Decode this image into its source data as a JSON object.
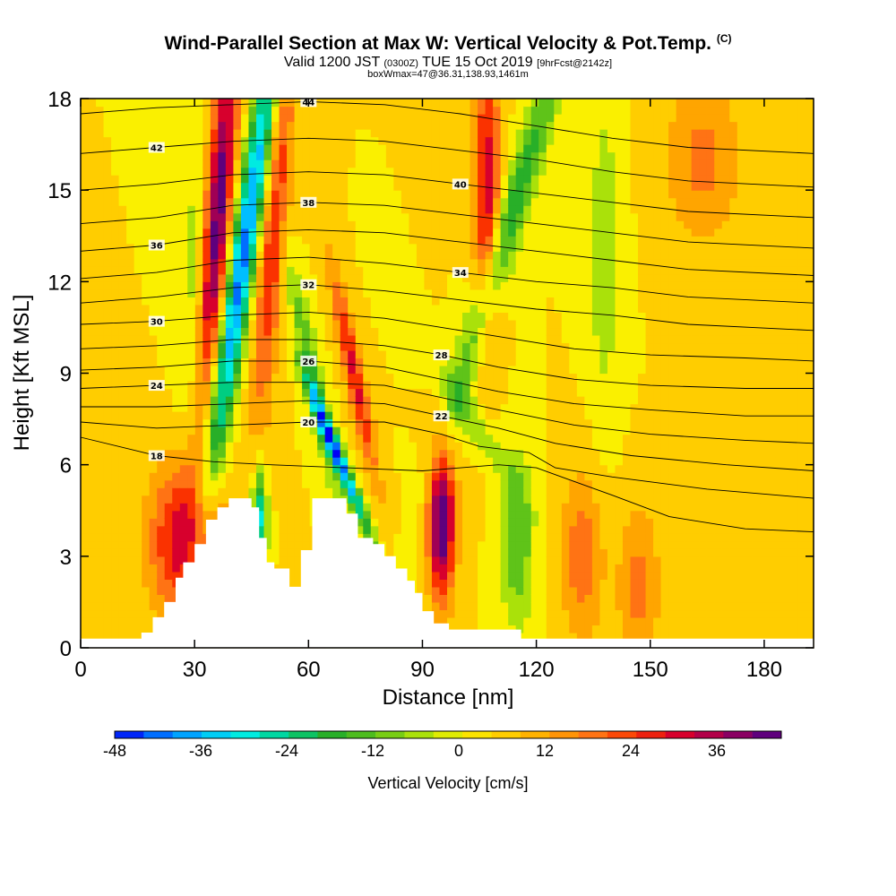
{
  "header": {
    "title": "Wind-Parallel Section at Max W: Vertical Velocity & Pot.Temp.",
    "title_tag": "(C)",
    "valid_prefix": "Valid 1200 JST",
    "valid_utc": "(0300Z)",
    "valid_date": "TUE 15 Oct 2019",
    "forecast": "[9hrFcst@2142z]",
    "box_info": "boxWmax=47@36.31,138.93,1461m"
  },
  "chart_data": {
    "type": "heatmap",
    "title": "Wind-Parallel Section at Max W: Vertical Velocity & Pot.Temp.",
    "xlabel": "Distance [nm]",
    "ylabel": "Height [Kft MSL]",
    "xlim": [
      0,
      193
    ],
    "ylim": [
      0,
      18
    ],
    "x_ticks": [
      "0",
      "30",
      "60",
      "90",
      "120",
      "150",
      "180"
    ],
    "y_ticks": [
      "0",
      "3",
      "6",
      "9",
      "12",
      "15",
      "18"
    ],
    "colorbar": {
      "label": "Vertical Velocity [cm/s]",
      "ticks": [
        "-48",
        "-36",
        "-24",
        "-12",
        "0",
        "12",
        "24",
        "36"
      ],
      "min": -48,
      "max": 45,
      "step": 4
    },
    "terrain_profile": [
      [
        0,
        0.3
      ],
      [
        16,
        0.3
      ],
      [
        16,
        0.5
      ],
      [
        19,
        0.5
      ],
      [
        19,
        1
      ],
      [
        22,
        1
      ],
      [
        22,
        1.5
      ],
      [
        25,
        1.5
      ],
      [
        25,
        2.3
      ],
      [
        27,
        2.3
      ],
      [
        27,
        2.8
      ],
      [
        30,
        2.8
      ],
      [
        30,
        3.4
      ],
      [
        33,
        3.4
      ],
      [
        33,
        4.2
      ],
      [
        36,
        4.2
      ],
      [
        36,
        4.6
      ],
      [
        39,
        4.6
      ],
      [
        39,
        4.9
      ],
      [
        45,
        4.9
      ],
      [
        45,
        4.6
      ],
      [
        47,
        4.6
      ],
      [
        47,
        3.6
      ],
      [
        49,
        3.6
      ],
      [
        49,
        2.8
      ],
      [
        51,
        2.8
      ],
      [
        51,
        2.6
      ],
      [
        55,
        2.6
      ],
      [
        55,
        2
      ],
      [
        58,
        2
      ],
      [
        58,
        3.2
      ],
      [
        61,
        3.2
      ],
      [
        61,
        4.9
      ],
      [
        70,
        4.9
      ],
      [
        70,
        4.4
      ],
      [
        73,
        4.4
      ],
      [
        73,
        3.6
      ],
      [
        77,
        3.6
      ],
      [
        77,
        3.4
      ],
      [
        80,
        3.4
      ],
      [
        80,
        3
      ],
      [
        83,
        3
      ],
      [
        83,
        2.6
      ],
      [
        86,
        2.6
      ],
      [
        86,
        2.2
      ],
      [
        88,
        2.2
      ],
      [
        88,
        1.8
      ],
      [
        90,
        1.8
      ],
      [
        90,
        1.2
      ],
      [
        93,
        1.2
      ],
      [
        93,
        0.8
      ],
      [
        97,
        0.8
      ],
      [
        97,
        0.6
      ],
      [
        116,
        0.6
      ],
      [
        116,
        0.3
      ],
      [
        193,
        0.3
      ]
    ],
    "velocity_features": [
      {
        "x": 36,
        "y": 14,
        "value": 40,
        "sx": 2.5,
        "sy": 5,
        "tilt": 0.15
      },
      {
        "x": 43,
        "y": 13,
        "value": -45,
        "sx": 2.5,
        "sy": 6,
        "tilt": 0.3
      },
      {
        "x": 51,
        "y": 14,
        "value": 24,
        "sx": 2.5,
        "sy": 5,
        "tilt": 0.15
      },
      {
        "x": 28,
        "y": 3.5,
        "value": 30,
        "sx": 7,
        "sy": 1.8,
        "tilt": 0
      },
      {
        "x": 95,
        "y": 4.2,
        "value": 44,
        "sx": 2.5,
        "sy": 1.8,
        "tilt": 0
      },
      {
        "x": 115,
        "y": 3.5,
        "value": -18,
        "sx": 3,
        "sy": 2,
        "tilt": 0
      },
      {
        "x": 68,
        "y": 6.2,
        "value": -44,
        "sx": 1.4,
        "sy": 1.8,
        "tilt": -0.8
      },
      {
        "x": 72,
        "y": 9,
        "value": 26,
        "sx": 1.8,
        "sy": 2.5,
        "tilt": -0.4
      },
      {
        "x": 61,
        "y": 9,
        "value": -18,
        "sx": 1.8,
        "sy": 3,
        "tilt": -0.4
      },
      {
        "x": 107,
        "y": 15,
        "value": 28,
        "sx": 2.5,
        "sy": 3.5,
        "tilt": 0
      },
      {
        "x": 113,
        "y": 14,
        "value": -22,
        "sx": 3,
        "sy": 5,
        "tilt": 0.6
      },
      {
        "x": 132,
        "y": 3,
        "value": 16,
        "sx": 4,
        "sy": 2,
        "tilt": 0
      },
      {
        "x": 147,
        "y": 2,
        "value": 14,
        "sx": 4,
        "sy": 2,
        "tilt": 0
      },
      {
        "x": 164,
        "y": 16,
        "value": 14,
        "sx": 7,
        "sy": 2,
        "tilt": 0
      },
      {
        "x": 103,
        "y": 7.5,
        "value": -12,
        "sx": 3,
        "sy": 1.5,
        "tilt": -1.2
      },
      {
        "x": 47,
        "y": 4.3,
        "value": -34,
        "sx": 1.4,
        "sy": 1.2,
        "tilt": 0
      },
      {
        "x": 138,
        "y": 13,
        "value": -10,
        "sx": 3,
        "sy": 4,
        "tilt": 0
      },
      {
        "x": 30,
        "y": 11,
        "value": -10,
        "sx": 3,
        "sy": 4,
        "tilt": 0
      }
    ],
    "theta_contours": [
      {
        "label": "18",
        "points": [
          [
            0,
            6.9
          ],
          [
            20,
            6.3
          ],
          [
            35,
            6.1
          ],
          [
            50,
            6
          ],
          [
            70,
            5.9
          ],
          [
            90,
            5.8
          ],
          [
            110,
            6
          ],
          [
            120,
            5.9
          ],
          [
            140,
            5
          ],
          [
            155,
            4.3
          ],
          [
            175,
            3.9
          ],
          [
            193,
            3.8
          ]
        ]
      },
      {
        "label": "20",
        "points": [
          [
            0,
            7.4
          ],
          [
            20,
            7.2
          ],
          [
            40,
            7.3
          ],
          [
            60,
            7.4
          ],
          [
            80,
            7.4
          ],
          [
            95,
            7
          ],
          [
            105,
            6.6
          ],
          [
            118,
            6.4
          ],
          [
            125,
            5.9
          ],
          [
            140,
            5.6
          ],
          [
            165,
            5.2
          ],
          [
            193,
            4.9
          ]
        ]
      },
      {
        "label": "22",
        "points": [
          [
            0,
            7.9
          ],
          [
            20,
            7.9
          ],
          [
            40,
            8
          ],
          [
            60,
            8.1
          ],
          [
            80,
            8
          ],
          [
            95,
            7.6
          ],
          [
            110,
            7.2
          ],
          [
            125,
            6.7
          ],
          [
            145,
            6.3
          ],
          [
            170,
            6
          ],
          [
            193,
            5.8
          ]
        ]
      },
      {
        "label": "24",
        "points": [
          [
            0,
            8.5
          ],
          [
            20,
            8.6
          ],
          [
            40,
            8.7
          ],
          [
            60,
            8.7
          ],
          [
            80,
            8.6
          ],
          [
            95,
            8.2
          ],
          [
            110,
            7.8
          ],
          [
            130,
            7.3
          ],
          [
            150,
            7
          ],
          [
            175,
            6.8
          ],
          [
            193,
            6.7
          ]
        ]
      },
      {
        "label": "26",
        "points": [
          [
            0,
            9.1
          ],
          [
            20,
            9.2
          ],
          [
            40,
            9.4
          ],
          [
            60,
            9.4
          ],
          [
            80,
            9.2
          ],
          [
            95,
            8.8
          ],
          [
            110,
            8.4
          ],
          [
            130,
            8
          ],
          [
            150,
            7.8
          ],
          [
            175,
            7.6
          ],
          [
            193,
            7.6
          ]
        ]
      },
      {
        "label": "28",
        "points": [
          [
            0,
            9.8
          ],
          [
            20,
            9.9
          ],
          [
            40,
            10.1
          ],
          [
            60,
            10.1
          ],
          [
            80,
            9.9
          ],
          [
            95,
            9.6
          ],
          [
            110,
            9.2
          ],
          [
            130,
            8.8
          ],
          [
            150,
            8.6
          ],
          [
            175,
            8.5
          ],
          [
            193,
            8.5
          ]
        ]
      },
      {
        "label": "30",
        "points": [
          [
            0,
            10.6
          ],
          [
            20,
            10.7
          ],
          [
            40,
            10.9
          ],
          [
            60,
            11
          ],
          [
            80,
            10.8
          ],
          [
            95,
            10.5
          ],
          [
            110,
            10.2
          ],
          [
            130,
            9.8
          ],
          [
            150,
            9.6
          ],
          [
            175,
            9.5
          ],
          [
            193,
            9.4
          ]
        ]
      },
      {
        "label": "32",
        "points": [
          [
            0,
            11.3
          ],
          [
            20,
            11.5
          ],
          [
            40,
            11.8
          ],
          [
            60,
            11.9
          ],
          [
            80,
            11.7
          ],
          [
            100,
            11.4
          ],
          [
            120,
            11.1
          ],
          [
            140,
            10.9
          ],
          [
            160,
            10.6
          ],
          [
            193,
            10.4
          ]
        ]
      },
      {
        "label": "34",
        "points": [
          [
            0,
            12.1
          ],
          [
            20,
            12.3
          ],
          [
            40,
            12.7
          ],
          [
            60,
            12.8
          ],
          [
            80,
            12.6
          ],
          [
            100,
            12.3
          ],
          [
            120,
            12
          ],
          [
            140,
            11.8
          ],
          [
            160,
            11.5
          ],
          [
            193,
            11.3
          ]
        ]
      },
      {
        "label": "36",
        "points": [
          [
            0,
            13
          ],
          [
            20,
            13.2
          ],
          [
            40,
            13.6
          ],
          [
            60,
            13.7
          ],
          [
            80,
            13.6
          ],
          [
            100,
            13.3
          ],
          [
            120,
            13
          ],
          [
            140,
            12.7
          ],
          [
            160,
            12.4
          ],
          [
            193,
            12.2
          ]
        ]
      },
      {
        "label": "38",
        "points": [
          [
            0,
            13.9
          ],
          [
            20,
            14.1
          ],
          [
            40,
            14.5
          ],
          [
            60,
            14.6
          ],
          [
            80,
            14.5
          ],
          [
            100,
            14.2
          ],
          [
            120,
            13.9
          ],
          [
            140,
            13.6
          ],
          [
            160,
            13.3
          ],
          [
            193,
            13.1
          ]
        ]
      },
      {
        "label": "40",
        "points": [
          [
            0,
            15
          ],
          [
            20,
            15.2
          ],
          [
            40,
            15.5
          ],
          [
            60,
            15.6
          ],
          [
            80,
            15.5
          ],
          [
            100,
            15.2
          ],
          [
            120,
            14.9
          ],
          [
            140,
            14.6
          ],
          [
            160,
            14.3
          ],
          [
            193,
            14.1
          ]
        ]
      },
      {
        "label": "42",
        "points": [
          [
            0,
            16.2
          ],
          [
            20,
            16.4
          ],
          [
            40,
            16.6
          ],
          [
            60,
            16.7
          ],
          [
            80,
            16.6
          ],
          [
            100,
            16.3
          ],
          [
            120,
            16
          ],
          [
            140,
            15.6
          ],
          [
            160,
            15.3
          ],
          [
            193,
            15.1
          ]
        ]
      },
      {
        "label": "44",
        "points": [
          [
            0,
            17.5
          ],
          [
            20,
            17.7
          ],
          [
            40,
            17.8
          ],
          [
            60,
            17.9
          ],
          [
            80,
            17.8
          ],
          [
            100,
            17.5
          ],
          [
            120,
            17.1
          ],
          [
            140,
            16.7
          ],
          [
            160,
            16.4
          ],
          [
            193,
            16.2
          ]
        ]
      }
    ]
  }
}
